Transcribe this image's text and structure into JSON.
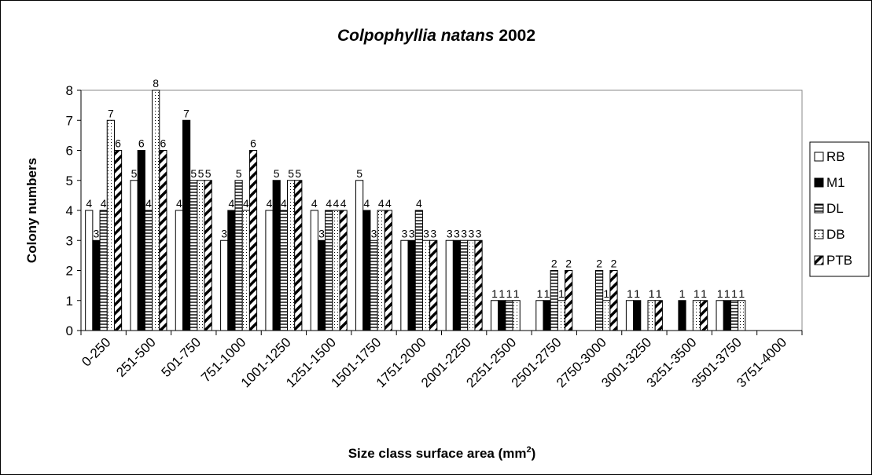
{
  "chart_data": {
    "type": "bar",
    "title": [
      "Colpophyllia natans",
      "2002"
    ],
    "y_label": "Colony numbers",
    "x_label": [
      "Size class surface area (mm",
      "2",
      ")"
    ],
    "categories": [
      "0-250",
      "251-500",
      "501-750",
      "751-1000",
      "1001-1250",
      "1251-1500",
      "1501-1750",
      "1751-2000",
      "2001-2250",
      "2251-2500",
      "2501-2750",
      "2750-3000",
      "3001-3250",
      "3251-3500",
      "3501-3750",
      "3751-4000"
    ],
    "series": [
      {
        "name": "RB",
        "color": "#ffffff",
        "pattern": "none",
        "values": [
          4,
          5,
          4,
          3,
          4,
          4,
          5,
          3,
          3,
          1,
          1,
          0,
          1,
          0,
          1,
          0
        ]
      },
      {
        "name": "M1",
        "color": "#000000",
        "pattern": "none",
        "values": [
          3,
          6,
          7,
          4,
          5,
          3,
          4,
          3,
          3,
          1,
          1,
          0,
          1,
          1,
          1,
          0
        ]
      },
      {
        "name": "DL",
        "color": "#ffffff",
        "pattern": "horizontal",
        "values": [
          4,
          4,
          5,
          5,
          4,
          4,
          3,
          4,
          3,
          1,
          2,
          2,
          0,
          0,
          1,
          0
        ]
      },
      {
        "name": "DB",
        "color": "#ffffff",
        "pattern": "dotted",
        "values": [
          7,
          8,
          5,
          4,
          5,
          4,
          4,
          3,
          3,
          1,
          1,
          1,
          1,
          1,
          1,
          0
        ]
      },
      {
        "name": "PTB",
        "color": "#ffffff",
        "pattern": "diagonal",
        "values": [
          6,
          6,
          5,
          6,
          5,
          4,
          4,
          3,
          3,
          0,
          2,
          2,
          1,
          1,
          0,
          0
        ]
      }
    ],
    "ylim": [
      0,
      8
    ],
    "yticks": [
      0,
      1,
      2,
      3,
      4,
      5,
      6,
      7,
      8
    ],
    "legend": "right"
  }
}
